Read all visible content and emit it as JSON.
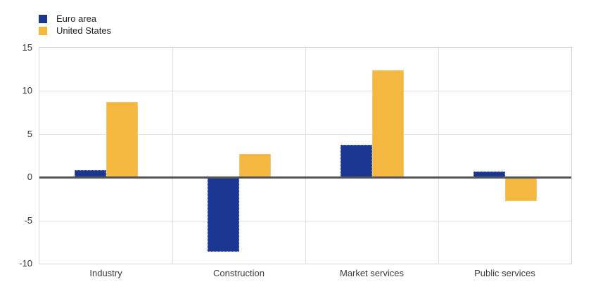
{
  "legend": {
    "position": "top-left"
  },
  "chart_data": {
    "type": "bar",
    "title": "",
    "xlabel": "",
    "ylabel": "",
    "categories": [
      "Industry",
      "Construction",
      "Market services",
      "Public services"
    ],
    "series": [
      {
        "name": "Euro area",
        "color": "#1a3691",
        "values": [
          0.8,
          -8.6,
          3.8,
          0.7
        ]
      },
      {
        "name": "United States",
        "color": "#f4b73f",
        "values": [
          8.7,
          2.7,
          12.4,
          -2.8
        ]
      }
    ],
    "ylim": [
      -10,
      15
    ],
    "yticks": [
      15,
      10,
      5,
      0,
      -5,
      -10
    ],
    "grid": true,
    "zero_line": true,
    "legend_position": "top-left"
  },
  "colors": {
    "euro_area": "#1a3691",
    "united_states": "#f4b73f",
    "gridline": "#e0e0e0",
    "plot_border": "#d6d6d6",
    "zero_line": "#55565a",
    "axis_text": "#333333"
  }
}
